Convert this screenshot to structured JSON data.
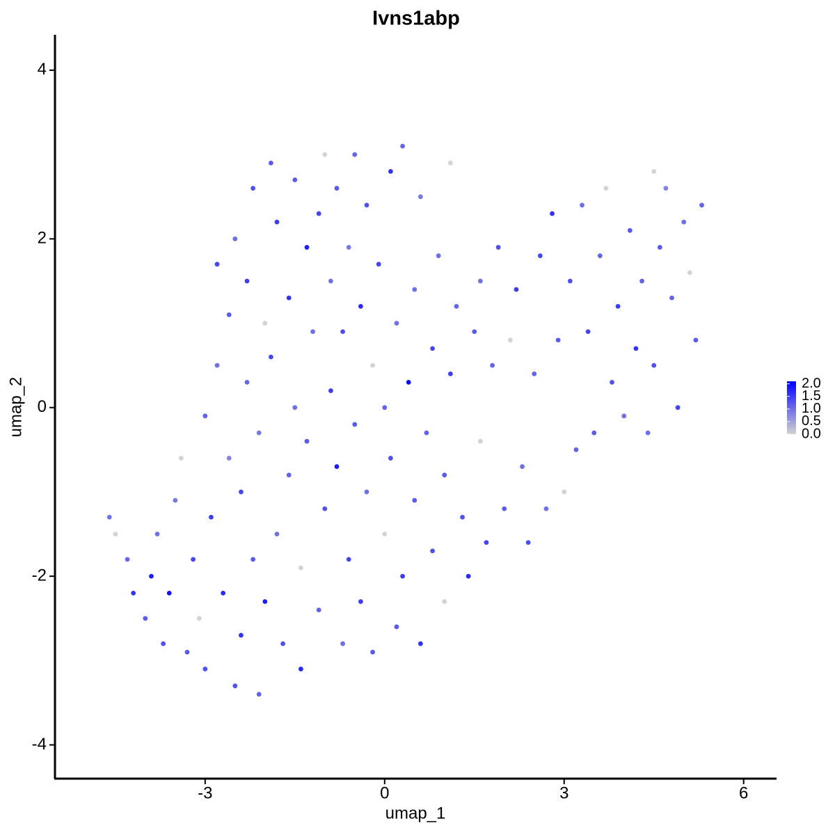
{
  "chart_data": {
    "type": "scatter",
    "title": "Ivns1abp",
    "x_label": "umap_1",
    "y_label": "umap_2",
    "xlim": [
      -5.51,
      6.55
    ],
    "ylim": [
      -4.4,
      4.42
    ],
    "xticks": [
      -3,
      0,
      3,
      6
    ],
    "yticks": [
      -4,
      -2,
      0,
      2,
      4
    ],
    "color_low": "#d3d3d3",
    "color_high": "#0000ff",
    "colorlim": [
      0,
      2.1
    ],
    "colorticks": [
      {
        "value": 0,
        "label": "0.0"
      },
      {
        "value": 0.5,
        "label": "0.5"
      },
      {
        "value": 1,
        "label": "1.0"
      },
      {
        "value": 1.5,
        "label": "1.5"
      },
      {
        "value": 2,
        "label": "2.0"
      }
    ],
    "x": [
      -4.6,
      -4.5,
      -4.3,
      -4.2,
      -4.0,
      -3.9,
      -3.8,
      -3.7,
      -3.6,
      -3.5,
      -3.4,
      -3.3,
      -3.2,
      -3.1,
      -3.0,
      -3.0,
      -2.9,
      -2.8,
      -2.8,
      -2.7,
      -2.6,
      -2.6,
      -2.5,
      -2.5,
      -2.4,
      -2.4,
      -2.3,
      -2.3,
      -2.2,
      -2.2,
      -2.1,
      -2.1,
      -2.0,
      -2.0,
      -1.9,
      -1.9,
      -1.8,
      -1.8,
      -1.7,
      -1.6,
      -1.6,
      -1.5,
      -1.5,
      -1.4,
      -1.4,
      -1.3,
      -1.3,
      -1.2,
      -1.1,
      -1.1,
      -1.0,
      -1.0,
      -0.9,
      -0.9,
      -0.8,
      -0.8,
      -0.7,
      -0.7,
      -0.6,
      -0.6,
      -0.5,
      -0.5,
      -0.4,
      -0.4,
      -0.3,
      -0.3,
      -0.2,
      -0.2,
      -0.1,
      0.0,
      0.0,
      0.1,
      0.1,
      0.2,
      0.2,
      0.3,
      0.3,
      0.4,
      0.5,
      0.5,
      0.6,
      0.6,
      0.7,
      0.8,
      0.8,
      0.9,
      1.0,
      1.0,
      1.1,
      1.1,
      1.2,
      1.3,
      1.4,
      1.5,
      1.6,
      1.6,
      1.7,
      1.8,
      1.9,
      2.0,
      2.1,
      2.2,
      2.3,
      2.4,
      2.5,
      2.6,
      2.7,
      2.8,
      2.9,
      3.0,
      3.1,
      3.2,
      3.3,
      3.4,
      3.5,
      3.6,
      3.7,
      3.8,
      3.9,
      4.0,
      4.1,
      4.2,
      4.3,
      4.4,
      4.5,
      4.5,
      4.6,
      4.7,
      4.8,
      4.9,
      5.0,
      5.1,
      5.2,
      5.3
    ],
    "y": [
      -1.3,
      -1.5,
      -1.8,
      -2.2,
      -2.5,
      -2.0,
      -1.5,
      -2.8,
      -2.2,
      -1.1,
      -0.6,
      -2.9,
      -1.8,
      -2.5,
      -0.1,
      -3.1,
      -1.3,
      0.5,
      1.7,
      -2.2,
      -0.6,
      1.1,
      -3.3,
      2.0,
      -1.0,
      -2.7,
      0.3,
      1.5,
      -1.8,
      2.6,
      -3.4,
      -0.3,
      1.0,
      -2.3,
      2.9,
      0.6,
      -1.5,
      2.2,
      -2.8,
      -0.8,
      1.3,
      0.0,
      2.7,
      -3.1,
      -1.9,
      1.9,
      -0.4,
      0.9,
      2.3,
      -2.4,
      3.0,
      -1.2,
      0.2,
      1.5,
      -0.7,
      2.6,
      -2.8,
      0.9,
      -1.8,
      1.9,
      3.0,
      -0.2,
      -2.3,
      1.2,
      -1.0,
      2.4,
      0.5,
      -2.9,
      1.7,
      -1.5,
      0.0,
      2.8,
      -0.6,
      1.0,
      -2.6,
      3.1,
      -2.0,
      0.3,
      1.4,
      -1.1,
      2.5,
      -2.8,
      -0.3,
      0.7,
      -1.7,
      1.8,
      -2.3,
      -0.8,
      2.9,
      0.4,
      1.2,
      -1.3,
      -2.0,
      0.9,
      1.5,
      -0.4,
      -1.6,
      0.5,
      1.9,
      -1.2,
      0.8,
      1.4,
      -0.7,
      -1.6,
      0.4,
      1.8,
      -1.2,
      2.3,
      0.8,
      -1.0,
      1.5,
      -0.5,
      2.4,
      0.9,
      -0.3,
      1.8,
      2.6,
      0.3,
      1.2,
      -0.1,
      2.1,
      0.7,
      1.5,
      -0.3,
      2.8,
      0.5,
      1.9,
      2.6,
      1.3,
      0.0,
      2.2,
      1.6,
      0.8,
      2.4
    ],
    "values": [
      1.0,
      0.0,
      1.1,
      1.6,
      1.2,
      1.8,
      1.0,
      1.3,
      1.9,
      0.9,
      0.0,
      1.2,
      1.4,
      0.0,
      1.1,
      1.3,
      1.5,
      1.0,
      1.4,
      1.7,
      0.8,
      1.2,
      1.3,
      1.0,
      1.4,
      1.6,
      1.1,
      1.5,
      1.2,
      1.3,
      1.1,
      0.9,
      0.0,
      1.8,
      1.2,
      1.4,
      1.0,
      1.5,
      1.3,
      1.1,
      1.6,
      1.0,
      1.2,
      1.7,
      0.0,
      1.8,
      1.2,
      1.0,
      1.4,
      1.1,
      0.0,
      1.3,
      1.5,
      1.0,
      1.8,
      1.2,
      1.0,
      1.3,
      1.4,
      0.9,
      1.1,
      1.2,
      1.5,
      1.7,
      1.0,
      1.3,
      0.0,
      1.2,
      1.4,
      0.0,
      1.1,
      1.6,
      1.3,
      1.0,
      1.2,
      1.1,
      1.5,
      2.0,
      1.0,
      1.2,
      0.9,
      1.6,
      1.1,
      1.4,
      1.3,
      1.0,
      0.0,
      1.2,
      0.0,
      1.5,
      1.1,
      1.3,
      1.7,
      1.2,
      1.0,
      0.0,
      1.4,
      1.1,
      1.3,
      1.2,
      0.0,
      1.5,
      1.0,
      1.3,
      1.1,
      1.4,
      1.0,
      1.6,
      1.2,
      0.0,
      1.3,
      1.1,
      1.0,
      1.4,
      1.2,
      1.1,
      0.0,
      1.3,
      1.5,
      1.0,
      1.2,
      1.6,
      1.1,
      1.0,
      0.0,
      1.3,
      1.2,
      0.8,
      1.1,
      1.4,
      1.0,
      0.0,
      1.2,
      1.1
    ]
  }
}
